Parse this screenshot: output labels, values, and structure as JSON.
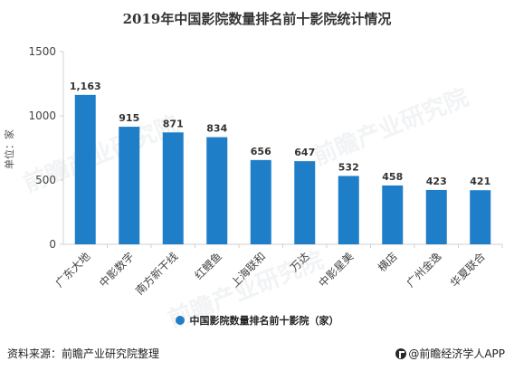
{
  "title": "2019年中国影院数量排名前十影院统计情况",
  "source": "资料来源：前瞻产业研究院整理",
  "brand": "@前瞻经济学人APP",
  "watermark": "前瞻产业研究院",
  "colors": {
    "bar": "#1f7ec8",
    "axis": "#d0d0d0",
    "text": "#444444"
  },
  "chart_data": {
    "type": "bar",
    "title": "2019年中国影院数量排名前十影院统计情况",
    "ylabel": "单位：家",
    "ylim": [
      0,
      1500
    ],
    "yticks": [
      0,
      500,
      1000,
      1500
    ],
    "grid": false,
    "legend_position": "bottom",
    "categories": [
      "广东大地",
      "中影数字",
      "南方新干线",
      "红鲤鱼",
      "上海联和",
      "万达",
      "中影星美",
      "横店",
      "广州金逸",
      "华夏联合"
    ],
    "series": [
      {
        "name": "中国影院数量排名前十影院（家）",
        "values": [
          1163,
          915,
          871,
          834,
          656,
          647,
          532,
          458,
          423,
          421
        ],
        "labels": [
          "1,163",
          "915",
          "871",
          "834",
          "656",
          "647",
          "532",
          "458",
          "423",
          "421"
        ]
      }
    ]
  }
}
